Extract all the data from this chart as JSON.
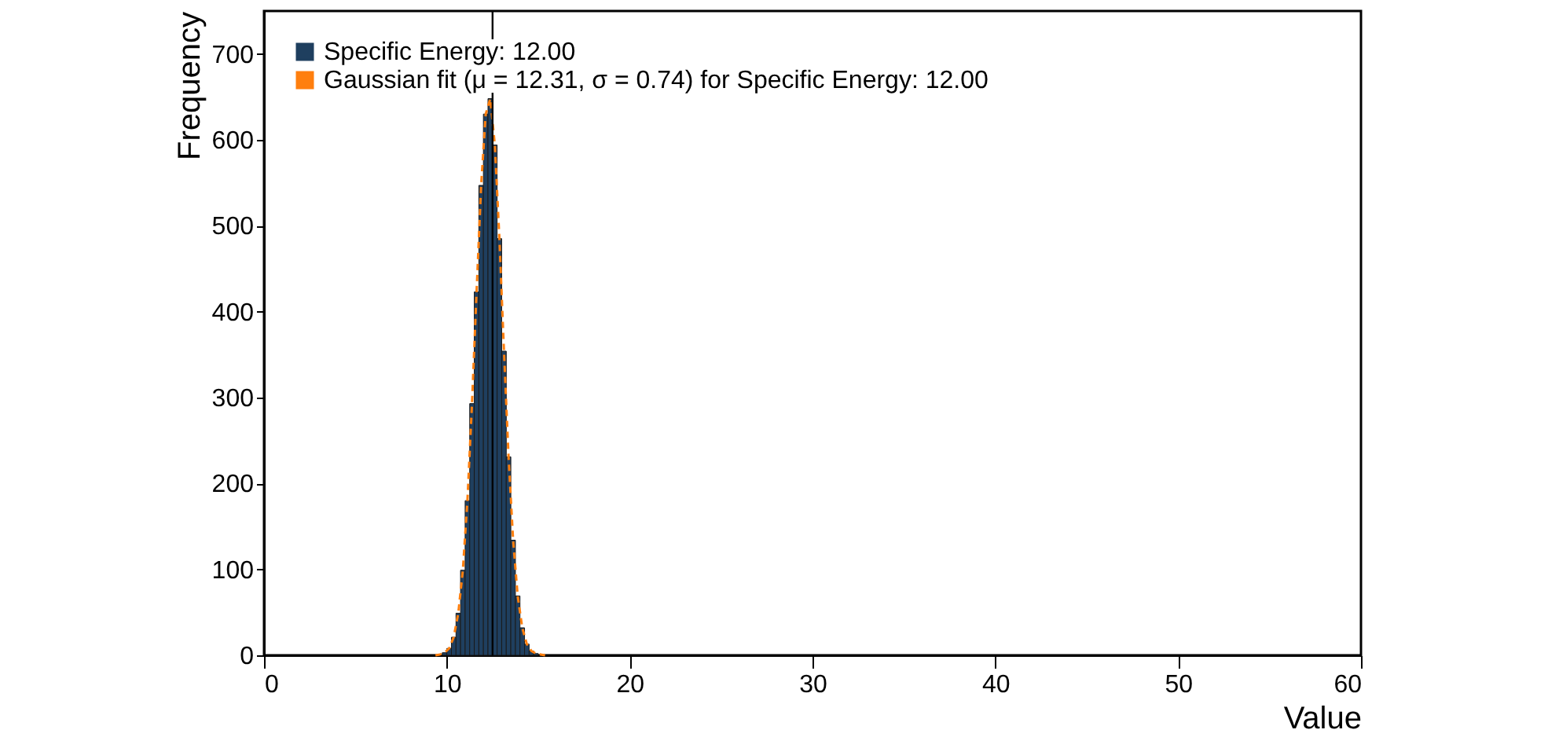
{
  "chart_data": {
    "type": "histogram",
    "xlabel": "Value",
    "ylabel": "Frequency",
    "bins": [
      9.75,
      10.0,
      10.25,
      10.5,
      10.75,
      11.0,
      11.25,
      11.5,
      11.75,
      12.0,
      12.25,
      12.5,
      12.75,
      13.0,
      13.25,
      13.5,
      13.75,
      14.0,
      14.25,
      14.5,
      14.75,
      15.0
    ],
    "series": [
      {
        "name": "Specific Energy: 12.00",
        "color": "#1f3f5f",
        "values": [
          3,
          8,
          21,
          49,
          99,
          180,
          293,
          423,
          547,
          630,
          648,
          594,
          485,
          354,
          231,
          134,
          69,
          32,
          13,
          5,
          2
        ]
      },
      {
        "type": "line",
        "name": "Gaussian fit (μ = 12.31, σ = 0.74) for Specific Energy: 12.00",
        "color": "#ff7f0e",
        "line_style": "dashed",
        "x": [
          9.375,
          9.625,
          9.875,
          10.125,
          10.375,
          10.625,
          10.875,
          11.125,
          11.375,
          11.625,
          11.875,
          12.125,
          12.375,
          12.625,
          12.875,
          13.125,
          13.375,
          13.625,
          13.875,
          14.125,
          14.375,
          14.625,
          14.875,
          15.125,
          15.375
        ],
        "values": [
          0,
          1,
          3,
          8,
          21,
          49,
          99,
          180,
          293,
          423,
          547,
          630,
          648,
          594,
          485,
          354,
          231,
          134,
          69,
          32,
          13,
          5,
          2,
          1,
          0
        ]
      }
    ],
    "ref_lines": [
      {
        "axis": "x",
        "value": 12.5,
        "color": "#000000"
      }
    ],
    "xlim": [
      0,
      60
    ],
    "xticks": [
      0,
      10,
      20,
      30,
      40,
      50,
      60
    ],
    "ylim": [
      0,
      750
    ],
    "yticks": [
      0,
      100,
      200,
      300,
      400,
      500,
      600,
      700
    ],
    "legend": "top left",
    "grid": false
  }
}
